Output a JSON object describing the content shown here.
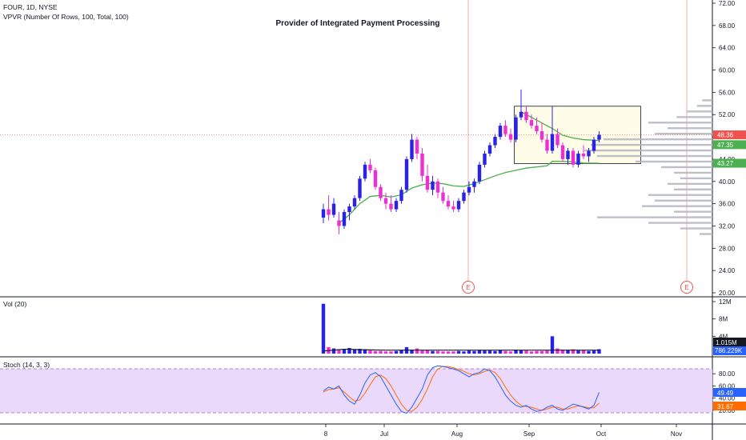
{
  "header": {
    "symbol_line": "FOUR, 1D, NYSE",
    "indicator_line": "VPVR (Number Of Rows, 100, Total, 100)",
    "title": "Provider of Integrated Payment Processing"
  },
  "colors": {
    "up": "#2a21e8",
    "down": "#ee2fd3",
    "ma": "#4caf50",
    "price_tag": "#ef5350",
    "ma_tag": "#4caf50",
    "vol_tag": "#131722",
    "vol_ma_tag": "#2962ff",
    "k_line": "#2962ff",
    "d_line": "#ff6d00",
    "stoch_fill": "#e9d5fb",
    "event_line": "#ef9a9a",
    "box_fill": "#fffde7",
    "vp_bar": "#b2b5be"
  },
  "price_pane": {
    "y_ticks": [
      "72.00",
      "68.00",
      "64.00",
      "60.00",
      "56.00",
      "52.00",
      "48.00",
      "44.00",
      "40.00",
      "36.00",
      "32.00",
      "28.00",
      "24.00",
      "20.00"
    ],
    "last_price_tag": "48.36",
    "ma_tag_upper": "47.35",
    "ma_tag_lower": "43.27",
    "earnings_marker": "E"
  },
  "volume_pane": {
    "legend": "Vol (20)",
    "y_ticks": [
      "12M",
      "8M",
      "4M"
    ],
    "volume_tag": "1.015M",
    "volume_ma_tag": "786.229K"
  },
  "stoch_pane": {
    "legend": "Stoch (14, 3, 3)",
    "y_ticks": [
      "80.00",
      "60.00",
      "40.00",
      "20.00"
    ],
    "k_tag": "49.49",
    "d_tag": "31.67"
  },
  "x_axis": {
    "labels": [
      "8",
      "Jul",
      "Aug",
      "Sep",
      "Oct",
      "Nov"
    ]
  },
  "chart_data": {
    "type": "candlestick",
    "title": "Provider of Integrated Payment Processing",
    "ylim": [
      20,
      72
    ],
    "candles": [
      {
        "x": 0,
        "o": 33.5,
        "h": 36.0,
        "l": 32.5,
        "c": 35.0
      },
      {
        "x": 1,
        "o": 35.0,
        "h": 37.5,
        "l": 33.0,
        "c": 34.0
      },
      {
        "x": 2,
        "o": 34.0,
        "h": 37.0,
        "l": 33.5,
        "c": 36.0
      },
      {
        "x": 3,
        "o": 33.0,
        "h": 34.5,
        "l": 30.5,
        "c": 32.0
      },
      {
        "x": 4,
        "o": 32.0,
        "h": 35.0,
        "l": 31.5,
        "c": 34.5
      },
      {
        "x": 5,
        "o": 34.5,
        "h": 36.0,
        "l": 33.0,
        "c": 35.5
      },
      {
        "x": 6,
        "o": 35.5,
        "h": 37.5,
        "l": 35.0,
        "c": 37.0
      },
      {
        "x": 7,
        "o": 37.0,
        "h": 41.0,
        "l": 36.5,
        "c": 40.5
      },
      {
        "x": 8,
        "o": 40.5,
        "h": 43.5,
        "l": 40.0,
        "c": 43.0
      },
      {
        "x": 9,
        "o": 43.0,
        "h": 44.0,
        "l": 41.5,
        "c": 42.0
      },
      {
        "x": 10,
        "o": 42.0,
        "h": 42.5,
        "l": 38.5,
        "c": 39.0
      },
      {
        "x": 11,
        "o": 39.0,
        "h": 39.5,
        "l": 36.5,
        "c": 37.0
      },
      {
        "x": 12,
        "o": 37.0,
        "h": 38.0,
        "l": 35.0,
        "c": 36.0
      },
      {
        "x": 13,
        "o": 36.0,
        "h": 37.5,
        "l": 34.5,
        "c": 35.0
      },
      {
        "x": 14,
        "o": 35.0,
        "h": 37.0,
        "l": 34.5,
        "c": 36.5
      },
      {
        "x": 15,
        "o": 36.5,
        "h": 39.0,
        "l": 36.0,
        "c": 38.5
      },
      {
        "x": 16,
        "o": 38.5,
        "h": 44.5,
        "l": 38.0,
        "c": 44.0
      },
      {
        "x": 17,
        "o": 44.0,
        "h": 48.5,
        "l": 43.5,
        "c": 47.5
      },
      {
        "x": 18,
        "o": 47.5,
        "h": 48.0,
        "l": 44.0,
        "c": 45.0
      },
      {
        "x": 19,
        "o": 45.0,
        "h": 46.0,
        "l": 40.0,
        "c": 41.0
      },
      {
        "x": 20,
        "o": 41.0,
        "h": 43.0,
        "l": 38.0,
        "c": 38.5
      },
      {
        "x": 21,
        "o": 38.5,
        "h": 41.0,
        "l": 37.5,
        "c": 40.0
      },
      {
        "x": 22,
        "o": 40.0,
        "h": 40.5,
        "l": 37.0,
        "c": 38.0
      },
      {
        "x": 23,
        "o": 38.0,
        "h": 39.0,
        "l": 36.0,
        "c": 36.5
      },
      {
        "x": 24,
        "o": 36.5,
        "h": 37.5,
        "l": 35.0,
        "c": 35.5
      },
      {
        "x": 25,
        "o": 35.5,
        "h": 36.5,
        "l": 34.5,
        "c": 35.0
      },
      {
        "x": 26,
        "o": 35.0,
        "h": 37.0,
        "l": 34.5,
        "c": 36.5
      },
      {
        "x": 27,
        "o": 36.5,
        "h": 38.5,
        "l": 36.0,
        "c": 38.0
      },
      {
        "x": 28,
        "o": 38.0,
        "h": 40.0,
        "l": 37.5,
        "c": 39.0
      },
      {
        "x": 29,
        "o": 39.0,
        "h": 40.5,
        "l": 38.0,
        "c": 40.0
      },
      {
        "x": 30,
        "o": 40.0,
        "h": 43.5,
        "l": 39.5,
        "c": 43.0
      },
      {
        "x": 31,
        "o": 43.0,
        "h": 45.5,
        "l": 42.5,
        "c": 45.0
      },
      {
        "x": 32,
        "o": 45.0,
        "h": 47.0,
        "l": 44.5,
        "c": 46.5
      },
      {
        "x": 33,
        "o": 46.5,
        "h": 48.5,
        "l": 46.0,
        "c": 48.0
      },
      {
        "x": 34,
        "o": 48.0,
        "h": 50.5,
        "l": 47.5,
        "c": 50.0
      },
      {
        "x": 35,
        "o": 50.0,
        "h": 51.0,
        "l": 48.0,
        "c": 48.5
      },
      {
        "x": 36,
        "o": 48.5,
        "h": 49.5,
        "l": 47.0,
        "c": 47.5
      },
      {
        "x": 37,
        "o": 47.5,
        "h": 52.0,
        "l": 47.0,
        "c": 51.5
      },
      {
        "x": 38,
        "o": 51.5,
        "h": 56.5,
        "l": 51.0,
        "c": 52.5
      },
      {
        "x": 39,
        "o": 52.5,
        "h": 53.5,
        "l": 50.5,
        "c": 51.0
      },
      {
        "x": 40,
        "o": 51.0,
        "h": 52.0,
        "l": 49.5,
        "c": 50.0
      },
      {
        "x": 41,
        "o": 50.0,
        "h": 51.5,
        "l": 48.5,
        "c": 49.0
      },
      {
        "x": 42,
        "o": 49.0,
        "h": 50.5,
        "l": 47.0,
        "c": 47.5
      },
      {
        "x": 43,
        "o": 47.5,
        "h": 48.5,
        "l": 45.0,
        "c": 45.5
      },
      {
        "x": 44,
        "o": 45.5,
        "h": 53.5,
        "l": 45.0,
        "c": 48.5
      },
      {
        "x": 45,
        "o": 48.5,
        "h": 49.5,
        "l": 46.0,
        "c": 46.5
      },
      {
        "x": 46,
        "o": 46.5,
        "h": 47.0,
        "l": 43.5,
        "c": 44.0
      },
      {
        "x": 47,
        "o": 44.0,
        "h": 46.0,
        "l": 43.0,
        "c": 45.5
      },
      {
        "x": 48,
        "o": 45.5,
        "h": 46.0,
        "l": 42.5,
        "c": 43.0
      },
      {
        "x": 49,
        "o": 43.0,
        "h": 45.5,
        "l": 42.5,
        "c": 45.0
      },
      {
        "x": 50,
        "o": 45.0,
        "h": 46.5,
        "l": 44.0,
        "c": 44.5
      },
      {
        "x": 51,
        "o": 44.5,
        "h": 46.0,
        "l": 43.5,
        "c": 45.5
      },
      {
        "x": 52,
        "o": 45.5,
        "h": 48.0,
        "l": 45.0,
        "c": 47.5
      },
      {
        "x": 53,
        "o": 47.5,
        "h": 49.0,
        "l": 47.0,
        "c": 48.36
      }
    ],
    "ma_line": [
      {
        "x": 3,
        "y": 32.5
      },
      {
        "x": 5,
        "y": 34.0
      },
      {
        "x": 7,
        "y": 36.0
      },
      {
        "x": 9,
        "y": 37.3
      },
      {
        "x": 11,
        "y": 37.5
      },
      {
        "x": 13,
        "y": 37.2
      },
      {
        "x": 15,
        "y": 37.6
      },
      {
        "x": 17,
        "y": 38.8
      },
      {
        "x": 19,
        "y": 39.4
      },
      {
        "x": 21,
        "y": 39.7
      },
      {
        "x": 23,
        "y": 39.6
      },
      {
        "x": 25,
        "y": 39.2
      },
      {
        "x": 27,
        "y": 39.1
      },
      {
        "x": 29,
        "y": 39.6
      },
      {
        "x": 31,
        "y": 40.3
      },
      {
        "x": 33,
        "y": 41.0
      },
      {
        "x": 35,
        "y": 41.6
      },
      {
        "x": 37,
        "y": 42.0
      },
      {
        "x": 39,
        "y": 42.4
      },
      {
        "x": 41,
        "y": 42.6
      },
      {
        "x": 43,
        "y": 42.8
      },
      {
        "x": 44,
        "y": 43.6
      },
      {
        "x": 46,
        "y": 43.6
      },
      {
        "x": 48,
        "y": 43.5
      },
      {
        "x": 50,
        "y": 43.3
      },
      {
        "x": 53,
        "y": 43.27
      }
    ],
    "ma_line_2": [
      {
        "x": 38,
        "y": 52.5
      },
      {
        "x": 40,
        "y": 51.5
      },
      {
        "x": 42,
        "y": 50.5
      },
      {
        "x": 44,
        "y": 49.5
      },
      {
        "x": 46,
        "y": 48.3
      },
      {
        "x": 48,
        "y": 47.8
      },
      {
        "x": 50,
        "y": 47.5
      },
      {
        "x": 53,
        "y": 47.35
      }
    ],
    "box": {
      "x0": 37,
      "x1": 61,
      "y_top": 53.5,
      "y_bottom": 43.2
    },
    "volume_profile": [
      {
        "price": 54.5,
        "len": 0.08
      },
      {
        "price": 53.5,
        "len": 0.12
      },
      {
        "price": 52.5,
        "len": 0.2
      },
      {
        "price": 51.5,
        "len": 0.28
      },
      {
        "price": 50.5,
        "len": 0.5
      },
      {
        "price": 49.5,
        "len": 0.35
      },
      {
        "price": 48.5,
        "len": 0.45
      },
      {
        "price": 47.5,
        "len": 0.85
      },
      {
        "price": 46.5,
        "len": 0.95
      },
      {
        "price": 45.5,
        "len": 1.0
      },
      {
        "price": 44.5,
        "len": 0.9
      },
      {
        "price": 43.5,
        "len": 0.6
      },
      {
        "price": 42.5,
        "len": 0.4
      },
      {
        "price": 41.5,
        "len": 0.3
      },
      {
        "price": 40.5,
        "len": 0.25
      },
      {
        "price": 39.5,
        "len": 0.35
      },
      {
        "price": 38.5,
        "len": 0.3
      },
      {
        "price": 37.5,
        "len": 0.5
      },
      {
        "price": 36.5,
        "len": 0.45
      },
      {
        "price": 35.5,
        "len": 0.55
      },
      {
        "price": 34.5,
        "len": 0.3
      },
      {
        "price": 33.5,
        "len": 0.9
      },
      {
        "price": 32.5,
        "len": 0.5
      },
      {
        "price": 31.5,
        "len": 0.25
      },
      {
        "price": 30.5,
        "len": 0.1
      }
    ],
    "volume": [
      11.5,
      1.5,
      1.2,
      0.8,
      1.0,
      1.3,
      0.9,
      1.1,
      1.0,
      0.7,
      0.6,
      0.6,
      0.5,
      0.5,
      0.6,
      0.8,
      1.5,
      0.9,
      1.2,
      0.7,
      0.8,
      0.6,
      0.6,
      0.5,
      0.5,
      0.5,
      0.6,
      0.5,
      0.7,
      0.6,
      0.8,
      0.7,
      0.7,
      0.6,
      0.8,
      0.6,
      0.5,
      0.9,
      0.8,
      0.7,
      0.5,
      0.6,
      0.6,
      0.7,
      4.0,
      1.2,
      0.9,
      0.8,
      1.0,
      0.7,
      0.8,
      0.6,
      0.7,
      1.015
    ],
    "volume_ma": [
      0.6,
      0.7,
      0.8,
      0.9,
      1.0,
      1.0,
      0.95,
      0.9,
      0.88,
      0.86,
      0.84,
      0.82,
      0.8,
      0.8,
      0.8,
      0.8,
      0.8,
      0.8,
      0.8,
      0.8,
      0.8,
      0.8,
      0.8,
      0.8,
      0.8,
      0.8,
      0.8,
      0.8,
      0.8,
      0.8,
      0.8,
      0.8,
      0.8,
      0.8,
      0.8,
      0.8,
      0.8,
      0.8,
      0.8,
      0.8,
      0.8,
      0.8,
      0.8,
      0.8,
      0.8,
      0.8,
      0.8,
      0.8,
      0.8,
      0.8,
      0.8,
      0.8,
      0.8,
      0.786
    ],
    "stoch_k": [
      52,
      58,
      55,
      60,
      45,
      35,
      30,
      45,
      65,
      78,
      82,
      75,
      60,
      45,
      30,
      18,
      15,
      25,
      40,
      55,
      78,
      90,
      93,
      92,
      90,
      88,
      85,
      80,
      75,
      80,
      82,
      88,
      85,
      75,
      60,
      45,
      35,
      28,
      25,
      28,
      22,
      18,
      20,
      25,
      28,
      22,
      20,
      25,
      30,
      28,
      25,
      22,
      28,
      49.49
    ],
    "stoch_d": [
      50,
      54,
      55,
      57,
      50,
      42,
      35,
      37,
      48,
      62,
      75,
      78,
      72,
      60,
      45,
      30,
      20,
      18,
      25,
      38,
      55,
      75,
      88,
      92,
      92,
      90,
      87,
      84,
      80,
      78,
      80,
      84,
      86,
      82,
      72,
      58,
      45,
      35,
      28,
      26,
      25,
      22,
      20,
      22,
      25,
      25,
      22,
      22,
      25,
      27,
      26,
      24,
      24,
      31.67
    ]
  }
}
